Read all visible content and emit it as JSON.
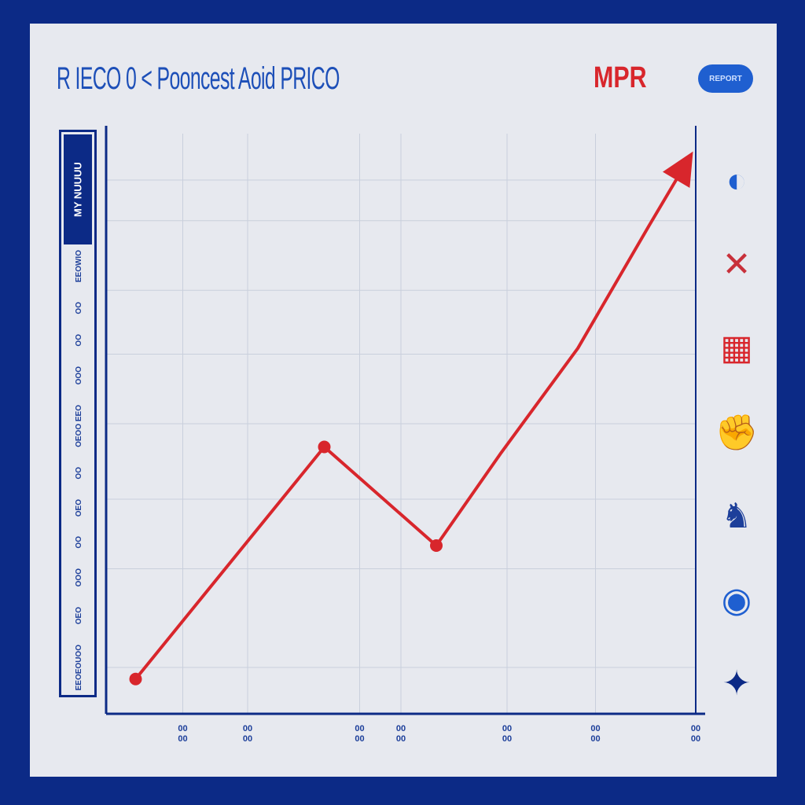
{
  "header": {
    "title": "R IECO 0 < Pooncest Aoid PRICO",
    "brand": "MPR",
    "badge": "REPORT"
  },
  "legend": {
    "heading": "MY NUUUU",
    "items": [
      "EEOWIO",
      "OO",
      "OO",
      "OOO",
      "OEOO EEO",
      "OO",
      "OEO",
      "OO",
      "OOO",
      "OEO",
      "EEOEOUOO"
    ]
  },
  "colors": {
    "frame": "#0c2a86",
    "line": "#d8262c",
    "axis": "#0c2a86",
    "grid": "#c9cfdc",
    "background": "#e7e9ef"
  },
  "icons": [
    {
      "name": "dolphin-logo-icon",
      "glyph": "◐",
      "color": "#1f5fd0"
    },
    {
      "name": "cross-logo-icon",
      "glyph": "✕",
      "color": "#c8303a"
    },
    {
      "name": "helmet-logo-icon",
      "glyph": "▦",
      "color": "#d8262c"
    },
    {
      "name": "fist-logo-icon",
      "glyph": "✊",
      "color": "#0c2a86"
    },
    {
      "name": "horse-logo-icon",
      "glyph": "♞",
      "color": "#1d3f9a"
    },
    {
      "name": "ball-logo-icon",
      "glyph": "◉",
      "color": "#1f5fd0"
    },
    {
      "name": "bird-logo-icon",
      "glyph": "✦",
      "color": "#0c2a86"
    }
  ],
  "chart_data": {
    "type": "line",
    "title": "R IECO 0 < Pooncest Aoid PRICO",
    "x_ticks": [
      {
        "x": 13,
        "label": [
          "00",
          "00"
        ]
      },
      {
        "x": 24,
        "label": [
          "00",
          "00"
        ]
      },
      {
        "x": 43,
        "label": [
          "00",
          "00"
        ]
      },
      {
        "x": 50,
        "label": [
          "00",
          "00"
        ]
      },
      {
        "x": 68,
        "label": [
          "00",
          "00"
        ]
      },
      {
        "x": 83,
        "label": [
          "00",
          "00"
        ]
      },
      {
        "x": 100,
        "label": [
          "00",
          "00"
        ]
      }
    ],
    "xlim": [
      0,
      100
    ],
    "ylim": [
      0,
      100
    ],
    "grid": true,
    "series": [
      {
        "points": [
          [
            5,
            6
          ],
          [
            37,
            46
          ],
          [
            56,
            29
          ],
          [
            67,
            45
          ],
          [
            80,
            63
          ],
          [
            92,
            84
          ],
          [
            99,
            96
          ]
        ],
        "markers": [
          0,
          1,
          2
        ],
        "end_arrow": true
      }
    ]
  }
}
